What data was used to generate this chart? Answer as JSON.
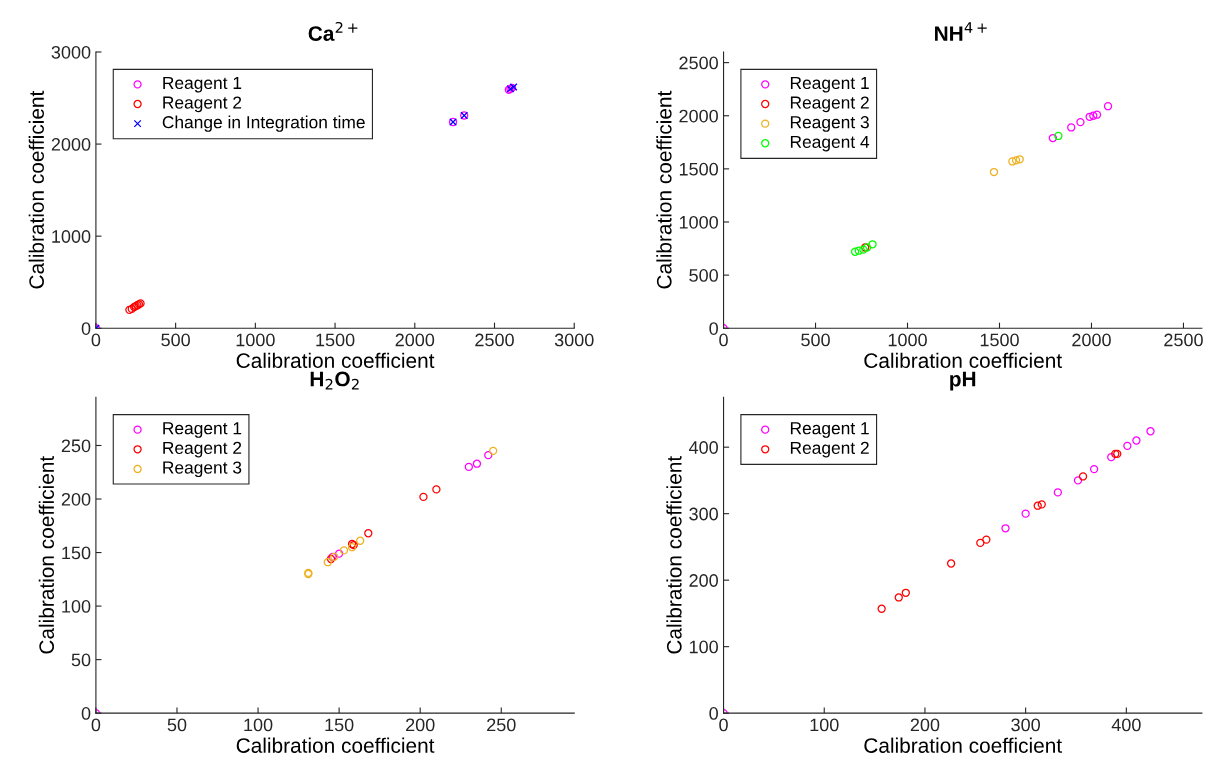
{
  "chart_data": [
    {
      "type": "scatter",
      "title": "Ca$^{2+}$",
      "xlabel": "Calibration coefficient",
      "ylabel": "Calibration coefficient",
      "xlim": [
        0,
        3000
      ],
      "ylim": [
        0,
        3000
      ],
      "xticks": [
        0,
        500,
        1000,
        1500,
        2000,
        2500,
        3000
      ],
      "yticks": [
        0,
        1000,
        2000,
        3000
      ],
      "legend": "top left",
      "grid": false,
      "marker": "circle",
      "series": [
        {
          "name": "Reagent 1",
          "color": "#ff00ff",
          "x": [
            0,
            2240,
            2310,
            2590,
            2600,
            2610
          ],
          "values": [
            0,
            2240,
            2310,
            2590,
            2600,
            2610
          ]
        },
        {
          "name": "Reagent 2",
          "color": "#ff0000",
          "x": [
            210,
            225,
            240,
            250,
            260,
            270,
            280
          ],
          "values": [
            200,
            210,
            230,
            240,
            250,
            260,
            270
          ]
        },
        {
          "name": "Change in Integration time",
          "color": "#0000ff",
          "marker": "cross",
          "x": [
            0,
            2240,
            2310,
            2600,
            2620
          ],
          "values": [
            0,
            2240,
            2310,
            2600,
            2620
          ]
        }
      ]
    },
    {
      "type": "scatter",
      "title": "NH$^{4+}$",
      "xlabel": "Calibration coefficient",
      "ylabel": "Calibration coefficient",
      "xlim": [
        0,
        2600
      ],
      "ylim": [
        0,
        2600
      ],
      "xticks": [
        0,
        500,
        1000,
        1500,
        2000,
        2500
      ],
      "yticks": [
        0,
        500,
        1000,
        1500,
        2000,
        2500
      ],
      "legend": "top left",
      "grid": false,
      "marker": "circle",
      "series": [
        {
          "name": "Reagent 1",
          "color": "#ff00ff",
          "x": [
            0,
            1790,
            1890,
            1940,
            1990,
            2010,
            2030,
            2090
          ],
          "values": [
            0,
            1790,
            1890,
            1940,
            1990,
            2000,
            2010,
            2090
          ]
        },
        {
          "name": "Reagent 2",
          "color": "#ff0000",
          "x": [
            770
          ],
          "values": [
            760
          ]
        },
        {
          "name": "Reagent 3",
          "color": "#edb120",
          "x": [
            1470,
            1570,
            1590,
            1610
          ],
          "values": [
            1470,
            1570,
            1580,
            1590
          ]
        },
        {
          "name": "Reagent 4",
          "color": "#00ff00",
          "x": [
            715,
            735,
            760,
            780,
            810,
            1820
          ],
          "values": [
            720,
            730,
            740,
            760,
            790,
            1810
          ]
        }
      ]
    },
    {
      "type": "scatter",
      "title": "H$_{2}$O$_{2}$",
      "xlabel": "Calibration coefficient",
      "ylabel": "Calibration coefficient",
      "xlim": [
        0,
        295
      ],
      "ylim": [
        0,
        295
      ],
      "xticks": [
        0,
        50,
        100,
        150,
        200,
        250
      ],
      "yticks": [
        0,
        50,
        100,
        150,
        200,
        250
      ],
      "legend": "top left",
      "grid": false,
      "marker": "circle",
      "series": [
        {
          "name": "Reagent 1",
          "color": "#ff00ff",
          "x": [
            0,
            146,
            150,
            230,
            235,
            242
          ],
          "values": [
            0,
            146,
            149,
            230,
            233,
            241
          ]
        },
        {
          "name": "Reagent 2",
          "color": "#ff0000",
          "x": [
            145,
            158,
            159,
            168,
            202,
            210
          ],
          "values": [
            144,
            158,
            157,
            168,
            202,
            209
          ]
        },
        {
          "name": "Reagent 3",
          "color": "#edb120",
          "x": [
            131,
            131,
            143,
            147,
            153,
            158,
            163,
            245
          ],
          "values": [
            130,
            131,
            141,
            146,
            152,
            155,
            161,
            245
          ]
        }
      ]
    },
    {
      "type": "scatter",
      "title": "pH",
      "xlabel": "Calibration coefficient",
      "ylabel": "Calibration coefficient",
      "xlim": [
        0,
        475
      ],
      "ylim": [
        0,
        475
      ],
      "xticks": [
        0,
        100,
        200,
        300,
        400
      ],
      "yticks": [
        0,
        100,
        200,
        300,
        400
      ],
      "legend": "top left",
      "grid": false,
      "marker": "circle",
      "series": [
        {
          "name": "Reagent 1",
          "color": "#ff00ff",
          "x": [
            0,
            280,
            300,
            332,
            352,
            368,
            385,
            401,
            410,
            424
          ],
          "values": [
            0,
            278,
            300,
            332,
            350,
            367,
            385,
            402,
            410,
            424
          ]
        },
        {
          "name": "Reagent 2",
          "color": "#ff0000",
          "x": [
            157,
            174,
            181,
            226,
            255,
            261,
            312,
            316,
            357,
            389,
            391
          ],
          "values": [
            157,
            174,
            181,
            225,
            256,
            261,
            312,
            314,
            356,
            390,
            390
          ]
        }
      ]
    }
  ]
}
